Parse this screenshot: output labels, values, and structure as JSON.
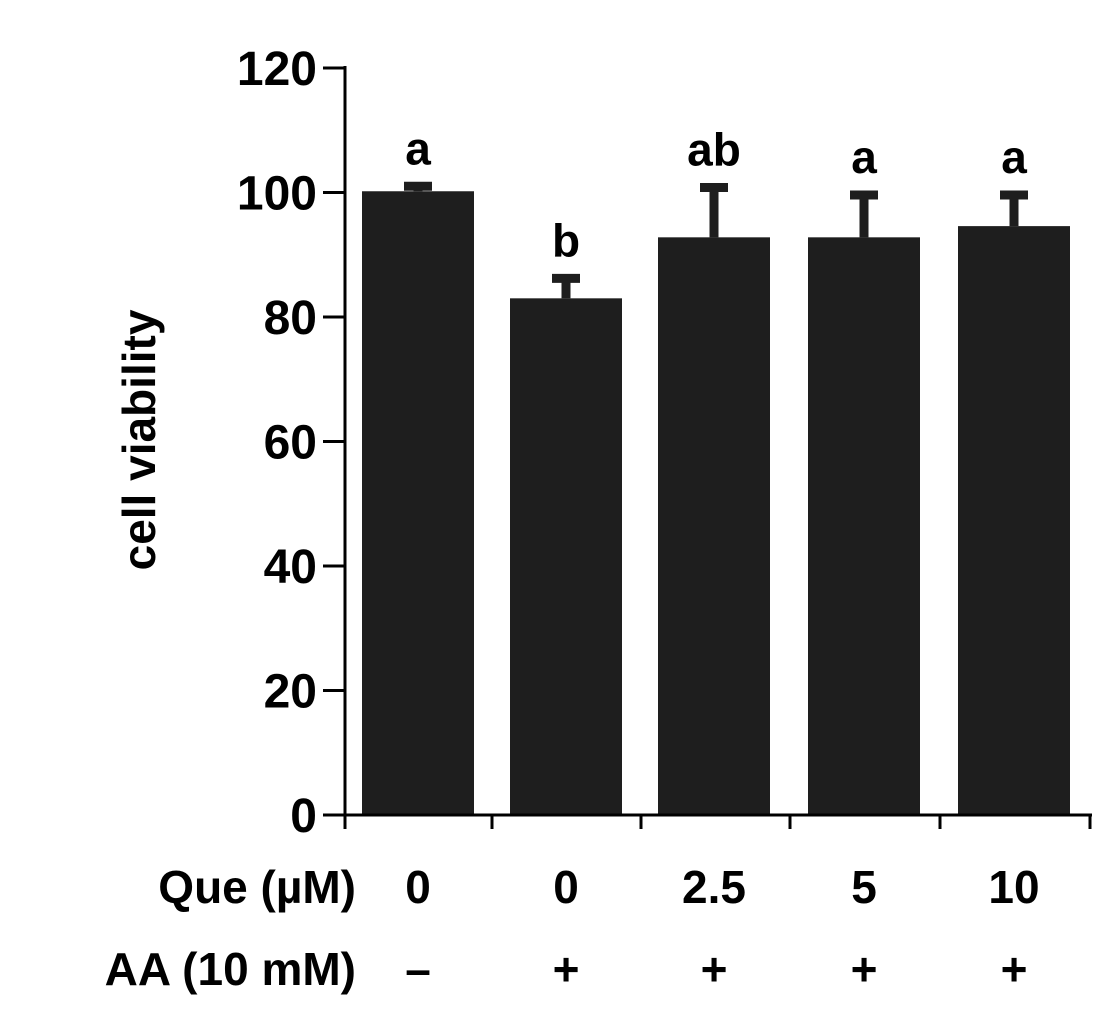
{
  "chart_data": {
    "type": "bar",
    "title": "",
    "xlabel": "",
    "ylabel": "cell viability",
    "ylim": [
      0,
      120
    ],
    "yticks": [
      "0",
      "20",
      "40",
      "60",
      "80",
      "100",
      "120"
    ],
    "grid": false,
    "legend": "none",
    "bar_color": "#1e1e1e",
    "categories": [
      "1",
      "2",
      "3",
      "4",
      "5"
    ],
    "series": [
      {
        "values": [
          100.2,
          83.0,
          92.8,
          92.8,
          94.6
        ],
        "errors": [
          0.8,
          3.2,
          8.0,
          6.8,
          5.0
        ],
        "significance": [
          "a",
          "b",
          "ab",
          "a",
          "a"
        ]
      }
    ],
    "factors": [
      {
        "label": "Que (µM)",
        "values": [
          "0",
          "0",
          "2.5",
          "5",
          "10"
        ]
      },
      {
        "label": "AA (10 mM)",
        "values": [
          "–",
          "+",
          "+",
          "+",
          "+"
        ]
      }
    ]
  }
}
